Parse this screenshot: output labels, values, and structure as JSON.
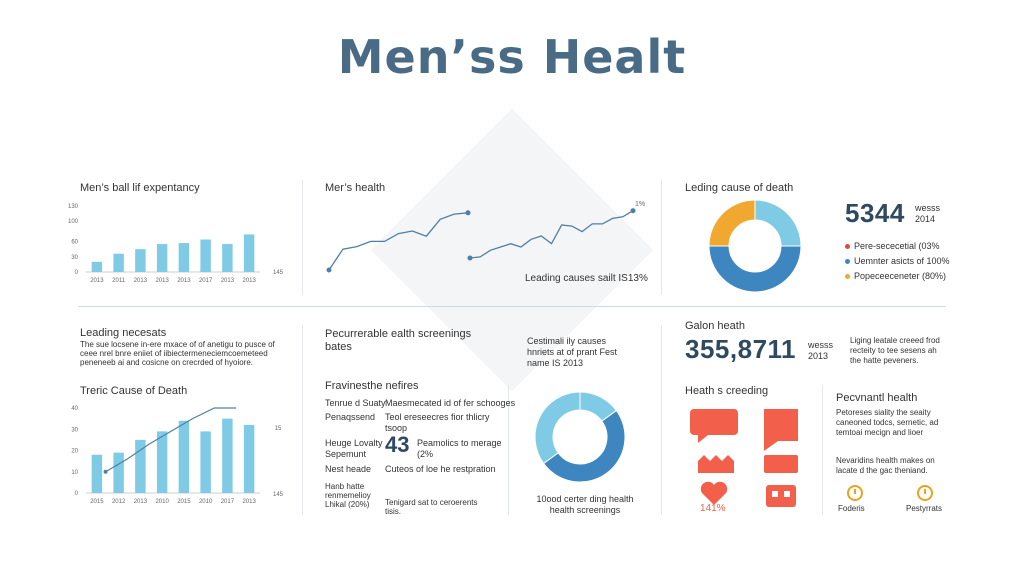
{
  "title": "Men’ss Healt",
  "colors": {
    "bar": "#7fcbe6",
    "line": "#4f7fa6",
    "donut_light": "#7fcbe6",
    "donut_dark": "#3d86c0",
    "donut_orange": "#f0a830",
    "red": "#f25f4a",
    "legend_red": "#e04a36",
    "legend_blue": "#3d86c0",
    "legend_orange": "#f0a830",
    "icon_orange": "#e9a31d"
  },
  "panel1": {
    "title": "Men’s ball lif expentancy"
  },
  "panel2": {
    "title": "Mer’s health",
    "caption": "Leading causes sailt IS13%"
  },
  "panel3": {
    "title": "Leding cause of death",
    "big_number": "5344",
    "big_side": [
      "wesss",
      "2014"
    ],
    "legend": [
      "Pere-sececetial (03%",
      "Uemnter asicts of 100%",
      "Popeceeceneter (80%)"
    ]
  },
  "panel4": {
    "title": "Leading necesats",
    "text": [
      "The sue locsene in-ere mxace of of anetigu to pusce of",
      "ceee nrel bnre eniiet of iibiectermeneciemcoemeteed",
      "peneneeb ai and cosicne on crecrded of hyoiore."
    ],
    "subtitle": "Treric Cause of Death"
  },
  "panel5": {
    "title": [
      "Pecurrerable ealth screenings",
      "bates"
    ],
    "subtitle": "Fravinesthe nefires",
    "rows": [
      {
        "l": [
          "Tenrue d Suaty"
        ],
        "r": [
          "Maesmecated id of fer schooges"
        ]
      },
      {
        "l": [
          "Penaqssend"
        ],
        "r": [
          "Teol ereseecres fior thlicry",
          "tsoop"
        ]
      },
      {
        "l": [
          "Heuge Lovalty",
          "Sepemunt"
        ],
        "r": [
          "Peamolics to merage",
          "(2%"
        ],
        "big": "43"
      },
      {
        "l": [
          "Nest heade"
        ],
        "r": [
          "Cuteos of loe he restpration"
        ]
      },
      {
        "l": [
          "Hanb hatte",
          "renmemelioy",
          "Lhikal (20%)"
        ],
        "r": [
          "Tenigard sat to ceroerents",
          "tisis."
        ]
      }
    ]
  },
  "panel6": {
    "text": [
      "Cestimali ily causes",
      "hnriets at of prant Fest",
      "name IS 2013"
    ],
    "caption": [
      "10ood certer ding health",
      "health screenings"
    ]
  },
  "panel7": {
    "title": "Galon heath",
    "big_number": "355,8711",
    "big_side": [
      "wesss",
      "2013"
    ],
    "text": [
      "Liging leatale creeed frod",
      "recteity to tee sesens ah",
      "the hatte peveners."
    ],
    "sub1": "Heath s creeding",
    "percent": "141%"
  },
  "panel8": {
    "title": "Pecvnantl health",
    "text1": [
      "Petoreses siality the seaity",
      "caneoned todcs, sernetic, ad",
      "temtoai mecign and lioer"
    ],
    "text2": [
      "Nevaridins health makes on",
      "lacate d the gac theniand."
    ],
    "icons": [
      "Foderis",
      "Pestyrrats"
    ]
  },
  "chart_data": [
    {
      "type": "bar",
      "name_ref": "panel1",
      "title": "Men’s ball lif expentancy",
      "categories": [
        "2013",
        "2011",
        "2013",
        "2013",
        "2013",
        "2017",
        "2013",
        "2013"
      ],
      "values": [
        20,
        36,
        45,
        55,
        57,
        64,
        55,
        74
      ],
      "ylim": [
        0,
        130
      ],
      "yticks": [
        0,
        30,
        60,
        100,
        130
      ],
      "right_tick": "145"
    },
    {
      "type": "line",
      "name_ref": "panel2",
      "series": [
        {
          "values": [
            0.0,
            0.32,
            0.36,
            0.44,
            0.44,
            0.56,
            0.6,
            0.52,
            0.78,
            0.86,
            0.88
          ]
        },
        {
          "values": [
            0.0,
            0.02,
            0.14,
            0.2,
            0.26,
            0.2,
            0.34,
            0.4,
            0.26,
            0.6,
            0.58,
            0.48,
            0.62,
            0.62,
            0.72,
            0.75,
            0.86
          ]
        }
      ],
      "end_label": "1%"
    },
    {
      "type": "pie",
      "name_ref": "panel3",
      "title": "Leding cause of death",
      "values": [
        25,
        50,
        25
      ]
    },
    {
      "type": "bar",
      "name_ref": "panel4",
      "title": "Treric Cause of Death",
      "categories": [
        "2015",
        "2012",
        "2013",
        "2010",
        "2015",
        "2010",
        "2017",
        "2013"
      ],
      "values": [
        18,
        19,
        25,
        29,
        34,
        29,
        35,
        32
      ],
      "line": [
        10,
        16,
        23,
        29,
        35,
        40,
        40
      ],
      "ylim": [
        0,
        40
      ],
      "yticks": [
        0,
        10,
        20,
        30,
        40
      ],
      "right_ticks": [
        "15",
        "145"
      ]
    },
    {
      "type": "pie",
      "name_ref": "panel6",
      "values": [
        15,
        50,
        35
      ]
    }
  ]
}
